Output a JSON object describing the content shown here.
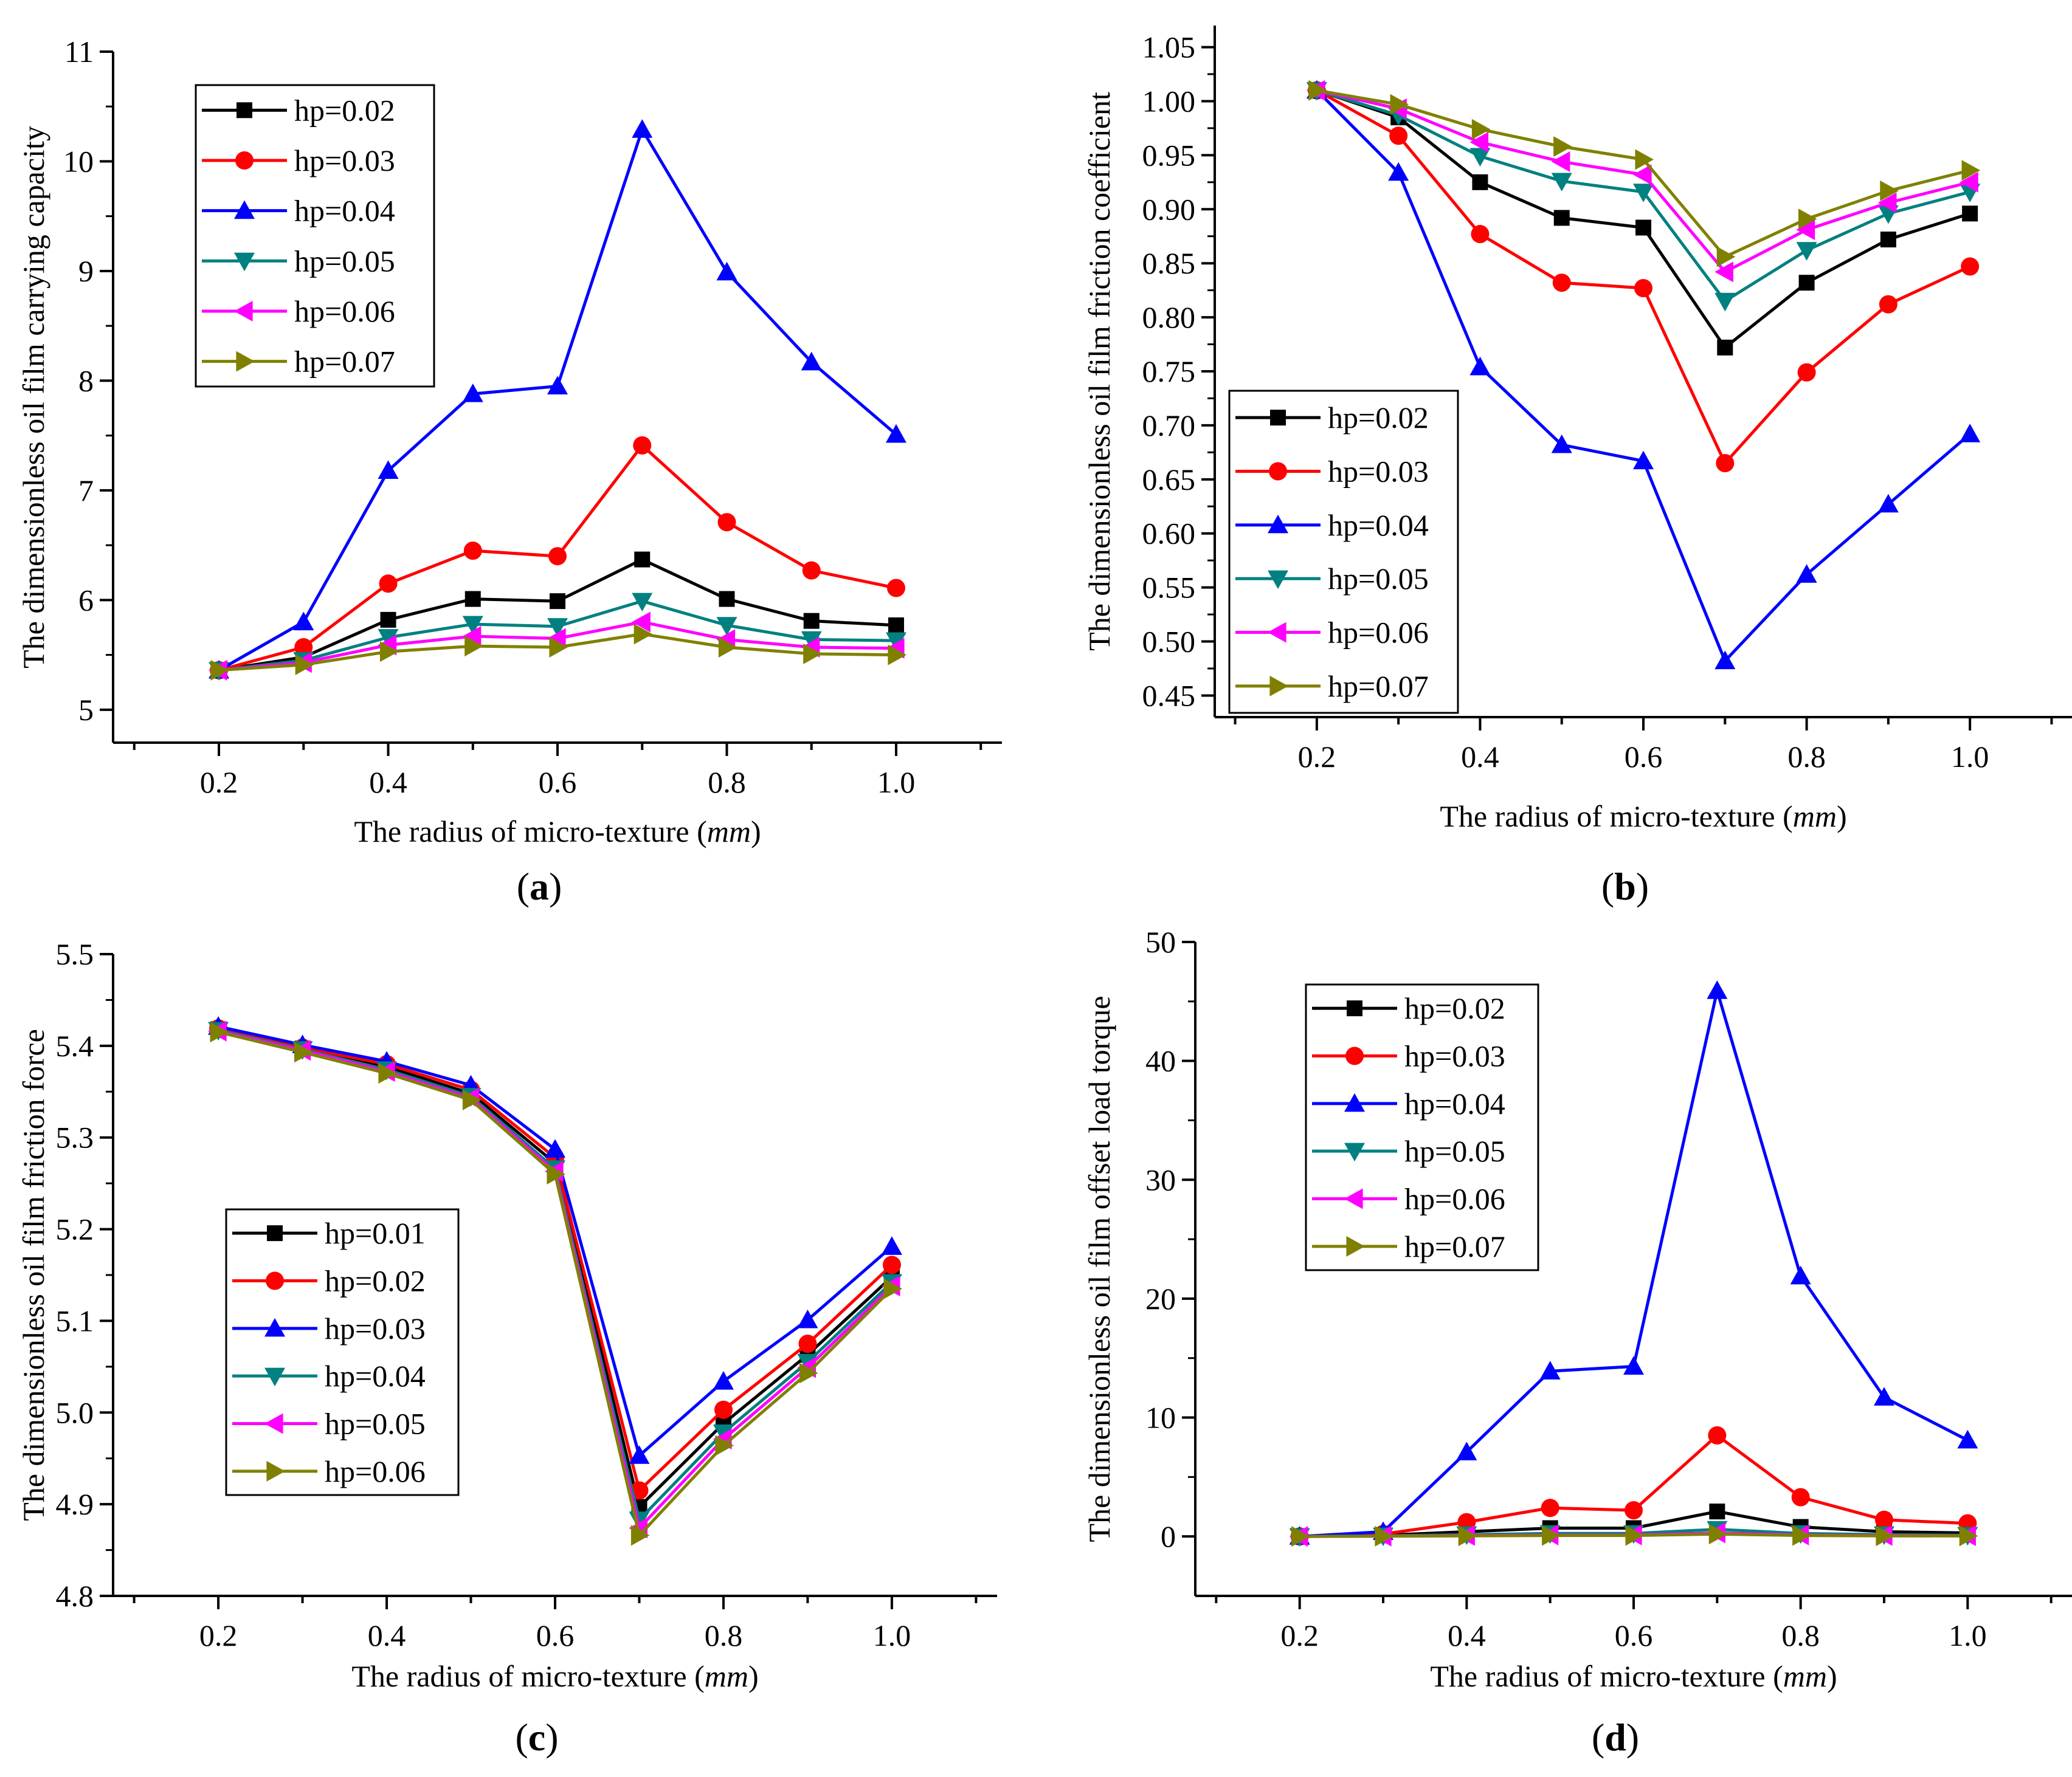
{
  "panel_labels": {
    "open": "(",
    "close": ")"
  },
  "chart_data": [
    {
      "type": "line",
      "panel": "a",
      "xlabel_prefix": "The radius of micro-texture (",
      "xlabel_unit": "mm",
      "xlabel_suffix": ")",
      "ylabel": "The dimensionless oil film carrying capacity",
      "x": [
        0.2,
        0.3,
        0.4,
        0.5,
        0.6,
        0.7,
        0.8,
        0.9,
        1.0
      ],
      "xlim": [
        0.075,
        1.125
      ],
      "ylim": [
        4.7,
        11
      ],
      "xticks": [
        0.2,
        0.4,
        0.6,
        0.8,
        1.0
      ],
      "xtick_labels": [
        "0.2",
        "0.4",
        "0.6",
        "0.8",
        "1.0"
      ],
      "yticks": [
        5,
        6,
        7,
        8,
        9,
        10,
        11
      ],
      "ytick_labels": [
        "5",
        "6",
        "7",
        "8",
        "9",
        "10",
        "11"
      ],
      "legend_position": "top-left",
      "series": [
        {
          "name": "hp=0.02",
          "color": "#000000",
          "marker": "square",
          "values": [
            5.36,
            5.48,
            5.82,
            6.01,
            5.99,
            6.37,
            6.01,
            5.81,
            5.77
          ]
        },
        {
          "name": "hp=0.03",
          "color": "#ff0000",
          "marker": "circle",
          "values": [
            5.36,
            5.57,
            6.15,
            6.45,
            6.4,
            7.41,
            6.71,
            6.27,
            6.11
          ]
        },
        {
          "name": "hp=0.04",
          "color": "#0000ff",
          "marker": "triangle-up",
          "values": [
            5.36,
            5.8,
            7.18,
            7.88,
            7.95,
            10.29,
            8.99,
            8.17,
            7.51
          ]
        },
        {
          "name": "hp=0.05",
          "color": "#008080",
          "marker": "triangle-down",
          "values": [
            5.36,
            5.45,
            5.66,
            5.78,
            5.76,
            5.99,
            5.77,
            5.64,
            5.63
          ]
        },
        {
          "name": "hp=0.06",
          "color": "#ff00ff",
          "marker": "triangle-left",
          "values": [
            5.36,
            5.43,
            5.59,
            5.67,
            5.65,
            5.8,
            5.64,
            5.57,
            5.56
          ]
        },
        {
          "name": "hp=0.07",
          "color": "#808000",
          "marker": "triangle-right",
          "values": [
            5.36,
            5.41,
            5.53,
            5.58,
            5.57,
            5.69,
            5.57,
            5.51,
            5.5
          ]
        }
      ]
    },
    {
      "type": "line",
      "panel": "b",
      "xlabel_prefix": "The radius of micro-texture (",
      "xlabel_unit": "mm",
      "xlabel_suffix": ")",
      "ylabel": "The dimensionless oil film friction coefficient",
      "x": [
        0.2,
        0.3,
        0.4,
        0.5,
        0.6,
        0.7,
        0.8,
        0.9,
        1.0
      ],
      "xlim": [
        0.075,
        1.125
      ],
      "ylim": [
        0.43,
        1.07
      ],
      "xticks": [
        0.2,
        0.4,
        0.6,
        0.8,
        1.0
      ],
      "xtick_labels": [
        "0.2",
        "0.4",
        "0.6",
        "0.8",
        "1.0"
      ],
      "yticks": [
        0.45,
        0.5,
        0.55,
        0.6,
        0.65,
        0.7,
        0.75,
        0.8,
        0.85,
        0.9,
        0.95,
        1.0,
        1.05
      ],
      "ytick_labels": [
        "0.45",
        "0.50",
        "0.55",
        "0.60",
        "0.65",
        "0.70",
        "0.75",
        "0.80",
        "0.85",
        "0.90",
        "0.95",
        "1.00",
        "1.05"
      ],
      "legend_position": "bottom-left",
      "series": [
        {
          "name": "hp=0.02",
          "color": "#000000",
          "marker": "square",
          "values": [
            1.01,
            0.985,
            0.925,
            0.892,
            0.883,
            0.772,
            0.832,
            0.872,
            0.896
          ]
        },
        {
          "name": "hp=0.03",
          "color": "#ff0000",
          "marker": "circle",
          "values": [
            1.01,
            0.968,
            0.877,
            0.832,
            0.827,
            0.665,
            0.749,
            0.812,
            0.847
          ]
        },
        {
          "name": "hp=0.04",
          "color": "#0000ff",
          "marker": "triangle-up",
          "values": [
            1.01,
            0.934,
            0.754,
            0.682,
            0.667,
            0.482,
            0.562,
            0.627,
            0.692
          ]
        },
        {
          "name": "hp=0.05",
          "color": "#008080",
          "marker": "triangle-down",
          "values": [
            1.01,
            0.987,
            0.949,
            0.926,
            0.916,
            0.815,
            0.862,
            0.896,
            0.916
          ]
        },
        {
          "name": "hp=0.06",
          "color": "#ff00ff",
          "marker": "triangle-left",
          "values": [
            1.01,
            0.993,
            0.962,
            0.944,
            0.932,
            0.842,
            0.881,
            0.906,
            0.925
          ]
        },
        {
          "name": "hp=0.07",
          "color": "#808000",
          "marker": "triangle-right",
          "values": [
            1.01,
            0.997,
            0.974,
            0.958,
            0.946,
            0.856,
            0.891,
            0.917,
            0.936
          ]
        }
      ]
    },
    {
      "type": "line",
      "panel": "c",
      "xlabel_prefix": "The radius of micro-texture (",
      "xlabel_unit": "mm",
      "xlabel_suffix": ")",
      "ylabel": "The dimensionless oil film friction force",
      "x": [
        0.2,
        0.3,
        0.4,
        0.5,
        0.6,
        0.7,
        0.8,
        0.9,
        1.0
      ],
      "xlim": [
        0.075,
        1.125
      ],
      "ylim": [
        4.8,
        5.5
      ],
      "xticks": [
        0.2,
        0.4,
        0.6,
        0.8,
        1.0
      ],
      "xtick_labels": [
        "0.2",
        "0.4",
        "0.6",
        "0.8",
        "1.0"
      ],
      "yticks": [
        4.8,
        4.9,
        5.0,
        5.1,
        5.2,
        5.3,
        5.4,
        5.5
      ],
      "ytick_labels": [
        "4.8",
        "4.9",
        "5.0",
        "5.1",
        "5.2",
        "5.3",
        "5.4",
        "5.5"
      ],
      "legend_position": "center-left",
      "series": [
        {
          "name": "hp=0.01",
          "color": "#000000",
          "marker": "square",
          "values": [
            5.418,
            5.397,
            5.377,
            5.348,
            5.272,
            4.897,
            4.988,
            5.063,
            5.148
          ]
        },
        {
          "name": "hp=0.02",
          "color": "#ff0000",
          "marker": "circle",
          "values": [
            5.419,
            5.398,
            5.38,
            5.352,
            5.278,
            4.915,
            5.003,
            5.075,
            5.161
          ]
        },
        {
          "name": "hp=0.03",
          "color": "#0000ff",
          "marker": "triangle-up",
          "values": [
            5.421,
            5.401,
            5.383,
            5.357,
            5.287,
            4.953,
            5.034,
            5.101,
            5.181
          ]
        },
        {
          "name": "hp=0.04",
          "color": "#008080",
          "marker": "triangle-down",
          "values": [
            5.417,
            5.396,
            5.374,
            5.345,
            5.266,
            4.883,
            4.978,
            5.055,
            5.142
          ]
        },
        {
          "name": "hp=0.05",
          "color": "#ff00ff",
          "marker": "triangle-left",
          "values": [
            5.416,
            5.395,
            5.372,
            5.343,
            5.263,
            4.874,
            4.971,
            5.049,
            5.138
          ]
        },
        {
          "name": "hp=0.06",
          "color": "#808000",
          "marker": "triangle-right",
          "values": [
            5.415,
            5.393,
            5.37,
            5.341,
            5.26,
            4.866,
            4.964,
            5.043,
            5.135
          ]
        }
      ]
    },
    {
      "type": "line",
      "panel": "d",
      "xlabel_prefix": "The radius of micro-texture (",
      "xlabel_unit": "mm",
      "xlabel_suffix": ")",
      "ylabel": "The dimensionless oil film offset load torque",
      "x": [
        0.2,
        0.3,
        0.4,
        0.5,
        0.6,
        0.7,
        0.8,
        0.9,
        1.0
      ],
      "xlim": [
        0.075,
        1.125
      ],
      "ylim": [
        -5,
        50
      ],
      "xticks": [
        0.2,
        0.4,
        0.6,
        0.8,
        1.0
      ],
      "xtick_labels": [
        "0.2",
        "0.4",
        "0.6",
        "0.8",
        "1.0"
      ],
      "yticks": [
        0,
        10,
        20,
        30,
        40,
        50
      ],
      "ytick_labels": [
        "0",
        "10",
        "20",
        "30",
        "40",
        "50"
      ],
      "legend_position": "top-left",
      "series": [
        {
          "name": "hp=0.02",
          "color": "#000000",
          "marker": "square",
          "values": [
            0,
            0.1,
            0.4,
            0.7,
            0.7,
            2.1,
            0.8,
            0.4,
            0.3
          ]
        },
        {
          "name": "hp=0.03",
          "color": "#ff0000",
          "marker": "circle",
          "values": [
            0,
            0.2,
            1.2,
            2.4,
            2.2,
            8.5,
            3.3,
            1.4,
            1.1
          ]
        },
        {
          "name": "hp=0.04",
          "color": "#0000ff",
          "marker": "triangle-up",
          "values": [
            0,
            0.4,
            7.1,
            13.9,
            14.3,
            45.9,
            21.9,
            11.7,
            8.1
          ]
        },
        {
          "name": "hp=0.05",
          "color": "#008080",
          "marker": "triangle-down",
          "values": [
            0,
            0.05,
            0.15,
            0.25,
            0.25,
            0.6,
            0.25,
            0.15,
            0.1
          ]
        },
        {
          "name": "hp=0.06",
          "color": "#ff00ff",
          "marker": "triangle-left",
          "values": [
            0,
            0.03,
            0.08,
            0.12,
            0.12,
            0.3,
            0.12,
            0.08,
            0.06
          ]
        },
        {
          "name": "hp=0.07",
          "color": "#808000",
          "marker": "triangle-right",
          "values": [
            0,
            0.02,
            0.05,
            0.08,
            0.08,
            0.2,
            0.08,
            0.05,
            0.04
          ]
        }
      ]
    }
  ]
}
